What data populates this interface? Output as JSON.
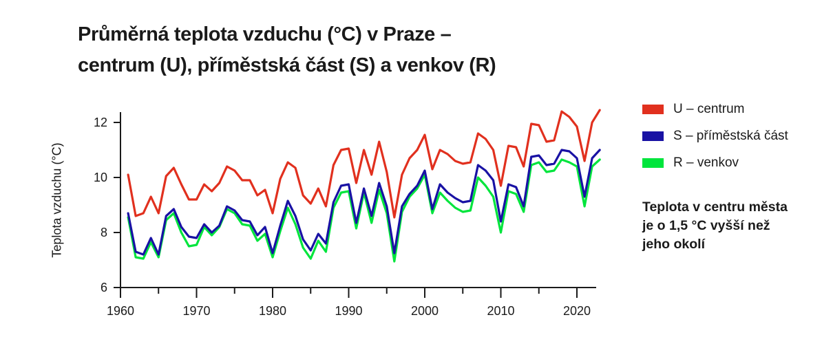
{
  "title_lines": [
    "Průměrná teplota vzduchu (°C) v Praze –",
    "centrum (U), příměstská část (S) a venkov (R)"
  ],
  "colors": {
    "u": "#e1301e",
    "s": "#1912a4",
    "r": "#00e53c",
    "text": "#1a1a1a",
    "axis": "#1a1a1a"
  },
  "legend": [
    {
      "id": "u",
      "label": "U – centrum",
      "color": "#e1301e"
    },
    {
      "id": "s",
      "label": "S – příměstská část",
      "color": "#1912a4"
    },
    {
      "id": "r",
      "label": "R – venkov",
      "color": "#00e53c"
    }
  ],
  "annotation_lines": [
    "Teplota v centru města",
    "je o 1,5 °C vyšší než",
    "jeho okolí"
  ],
  "chart_data": {
    "type": "line",
    "title": "Průměrná teplota vzduchu (°C) v Praze – centrum (U), příměstská část (S) a venkov (R)",
    "xlabel": "",
    "ylabel": "Teplota vzduchu (°C)",
    "grid": false,
    "legend_position": "right",
    "ylim": [
      6,
      12.8
    ],
    "y_ticks": [
      6,
      8,
      10,
      12
    ],
    "x_ticks_major": [
      1960,
      1970,
      1980,
      1990,
      2000,
      2010,
      2020
    ],
    "x_ticks_minor": [
      1965,
      1975,
      1985,
      1995,
      2005,
      2015
    ],
    "x": [
      1961,
      1962,
      1963,
      1964,
      1965,
      1966,
      1967,
      1968,
      1969,
      1970,
      1971,
      1972,
      1973,
      1974,
      1975,
      1976,
      1977,
      1978,
      1979,
      1980,
      1981,
      1982,
      1983,
      1984,
      1985,
      1986,
      1987,
      1988,
      1989,
      1990,
      1991,
      1992,
      1993,
      1994,
      1995,
      1996,
      1997,
      1998,
      1999,
      2000,
      2001,
      2002,
      2003,
      2004,
      2005,
      2006,
      2007,
      2008,
      2009,
      2010,
      2011,
      2012,
      2013,
      2014,
      2015,
      2016,
      2017,
      2018,
      2019,
      2020,
      2021,
      2022,
      2023
    ],
    "series": [
      {
        "name": "U – centrum",
        "color": "#e1301e",
        "values": [
          10.1,
          8.6,
          8.7,
          9.3,
          8.7,
          10.05,
          10.35,
          9.75,
          9.2,
          9.2,
          9.75,
          9.5,
          9.8,
          10.4,
          10.25,
          9.9,
          9.9,
          9.35,
          9.55,
          8.7,
          9.95,
          10.55,
          10.35,
          9.35,
          9.05,
          9.6,
          8.95,
          10.45,
          11.0,
          11.05,
          9.8,
          11.0,
          10.1,
          11.3,
          10.2,
          8.55,
          10.1,
          10.7,
          11.0,
          11.55,
          10.3,
          11.0,
          10.85,
          10.6,
          10.5,
          10.55,
          11.6,
          11.4,
          11.0,
          9.7,
          11.15,
          11.1,
          10.4,
          11.95,
          11.9,
          11.3,
          11.35,
          12.4,
          12.2,
          11.85,
          10.6,
          12.0,
          12.45
        ]
      },
      {
        "name": "S – příměstská část",
        "color": "#1912a4",
        "values": [
          8.7,
          7.3,
          7.2,
          7.8,
          7.2,
          8.6,
          8.85,
          8.2,
          7.85,
          7.8,
          8.3,
          8.0,
          8.25,
          8.95,
          8.8,
          8.45,
          8.4,
          7.9,
          8.2,
          7.25,
          8.25,
          9.15,
          8.6,
          7.75,
          7.35,
          7.95,
          7.6,
          9.1,
          9.7,
          9.75,
          8.35,
          9.6,
          8.6,
          9.8,
          8.95,
          7.25,
          8.95,
          9.4,
          9.7,
          10.25,
          8.85,
          9.75,
          9.45,
          9.25,
          9.1,
          9.15,
          10.45,
          10.25,
          9.9,
          8.4,
          9.75,
          9.65,
          8.95,
          10.75,
          10.8,
          10.45,
          10.5,
          11.0,
          10.95,
          10.7,
          9.3,
          10.7,
          11.0
        ]
      },
      {
        "name": "R – venkov",
        "color": "#00e53c",
        "values": [
          8.55,
          7.1,
          7.05,
          7.65,
          7.1,
          8.45,
          8.7,
          8.0,
          7.5,
          7.55,
          8.2,
          7.9,
          8.2,
          8.85,
          8.7,
          8.3,
          8.25,
          7.7,
          7.95,
          7.1,
          8.05,
          8.9,
          8.3,
          7.45,
          7.05,
          7.7,
          7.3,
          8.9,
          9.45,
          9.5,
          8.15,
          9.45,
          8.35,
          9.55,
          8.7,
          6.95,
          8.75,
          9.3,
          9.6,
          10.1,
          8.7,
          9.45,
          9.15,
          8.9,
          8.75,
          8.8,
          10.0,
          9.7,
          9.3,
          8.0,
          9.5,
          9.4,
          8.75,
          10.45,
          10.55,
          10.2,
          10.25,
          10.65,
          10.55,
          10.4,
          8.95,
          10.4,
          10.65
        ]
      }
    ]
  }
}
